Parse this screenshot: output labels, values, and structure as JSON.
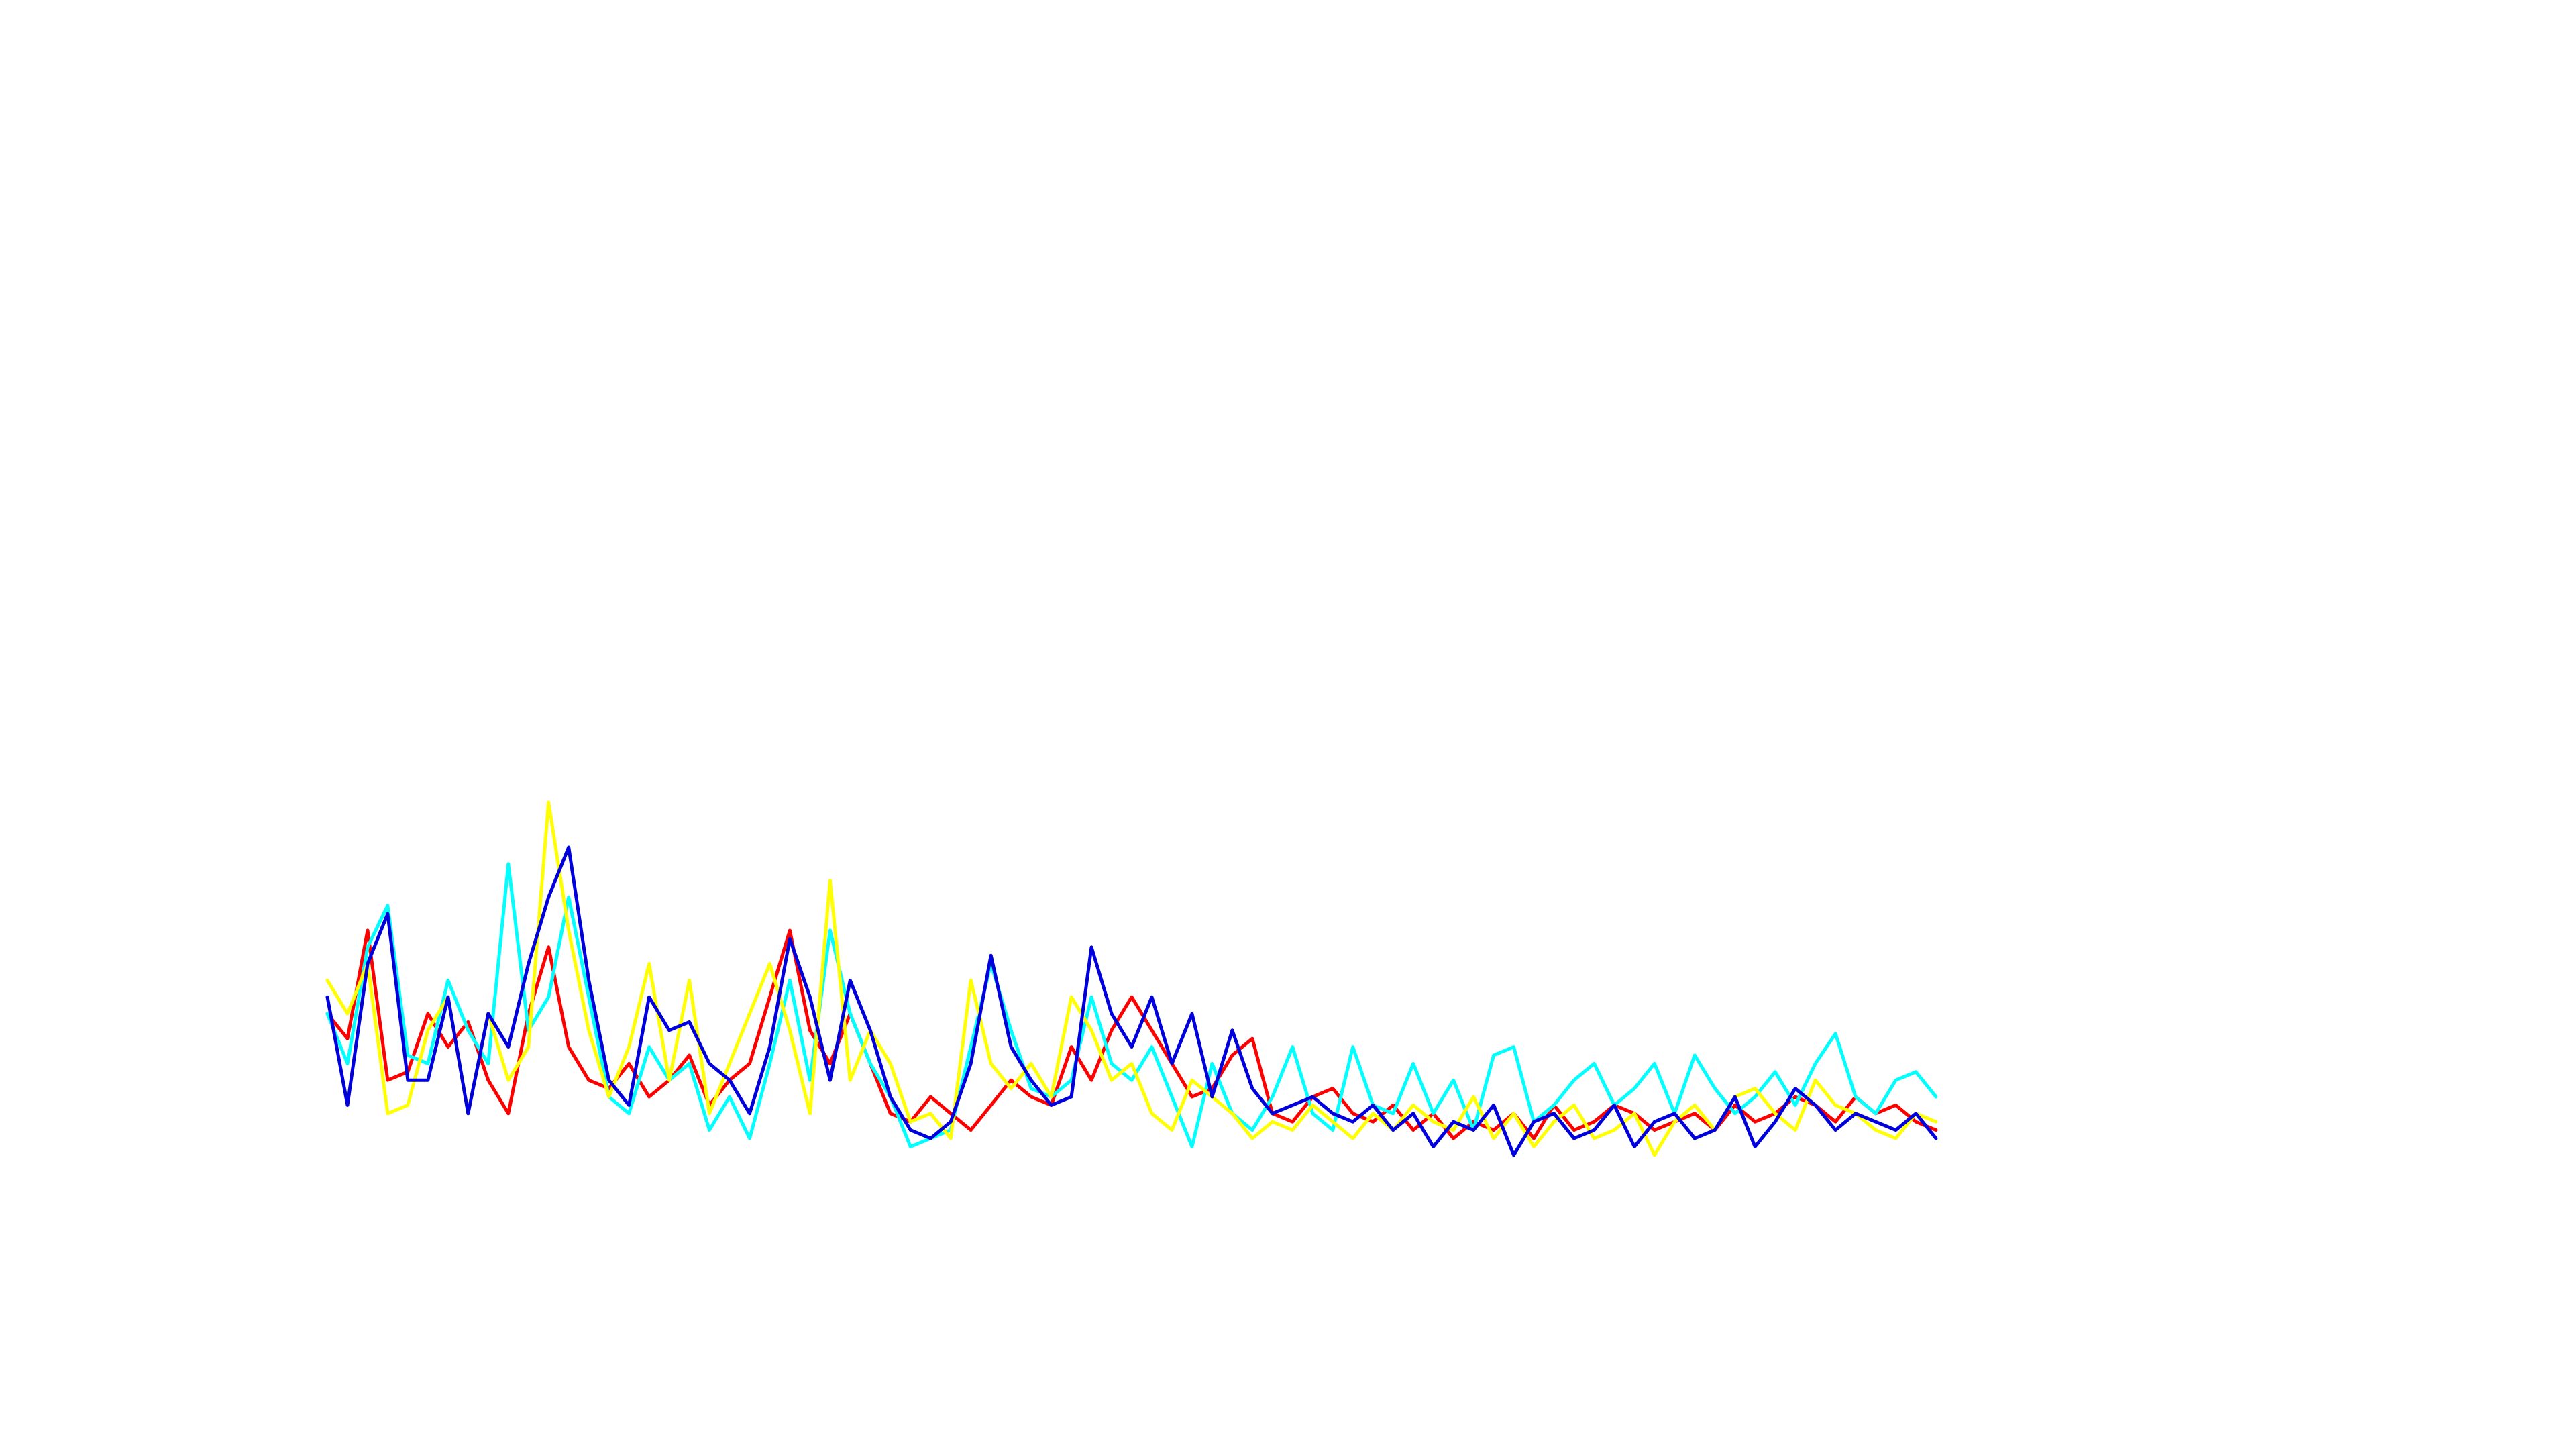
{
  "chart_data": {
    "type": "line",
    "xlim": [
      0,
      80
    ],
    "ylim": [
      0,
      250
    ],
    "grid": false,
    "series": [
      {
        "color": "#ff0000",
        "values": [
          100,
          85,
          150,
          60,
          65,
          100,
          80,
          95,
          60,
          40,
          100,
          140,
          80,
          60,
          55,
          70,
          50,
          60,
          75,
          45,
          60,
          70,
          110,
          150,
          90,
          70,
          100,
          70,
          40,
          35,
          50,
          40,
          30,
          45,
          60,
          50,
          45,
          80,
          60,
          90,
          110,
          90,
          70,
          50,
          55,
          75,
          85,
          40,
          35,
          50,
          55,
          40,
          35,
          45,
          30,
          40,
          25,
          35,
          30,
          40,
          25,
          45,
          30,
          35,
          45,
          40,
          30,
          35,
          40,
          30,
          45,
          35,
          40,
          50,
          45,
          35,
          50,
          40,
          45,
          35,
          30
        ]
      },
      {
        "color": "#00ffff",
        "values": [
          100,
          70,
          140,
          165,
          75,
          70,
          120,
          90,
          70,
          190,
          90,
          110,
          170,
          110,
          50,
          40,
          80,
          60,
          70,
          30,
          50,
          25,
          70,
          120,
          60,
          150,
          100,
          70,
          50,
          20,
          25,
          30,
          80,
          130,
          90,
          55,
          50,
          60,
          110,
          70,
          60,
          80,
          50,
          20,
          70,
          40,
          30,
          50,
          80,
          40,
          30,
          80,
          45,
          40,
          70,
          40,
          60,
          30,
          75,
          80,
          35,
          45,
          60,
          70,
          45,
          55,
          70,
          40,
          75,
          55,
          40,
          50,
          65,
          45,
          70,
          88,
          50,
          40,
          60,
          65,
          50
        ]
      },
      {
        "color": "#ffff00",
        "values": [
          120,
          100,
          130,
          40,
          45,
          90,
          110,
          40,
          100,
          60,
          80,
          227,
          150,
          90,
          50,
          80,
          130,
          60,
          120,
          40,
          70,
          100,
          130,
          90,
          40,
          180,
          60,
          90,
          70,
          35,
          40,
          25,
          120,
          70,
          55,
          70,
          50,
          110,
          90,
          60,
          70,
          40,
          30,
          60,
          50,
          40,
          25,
          35,
          30,
          45,
          35,
          25,
          40,
          30,
          45,
          35,
          30,
          50,
          25,
          40,
          20,
          35,
          45,
          25,
          30,
          40,
          15,
          35,
          45,
          30,
          50,
          55,
          40,
          30,
          60,
          45,
          40,
          30,
          25,
          40,
          35
        ]
      },
      {
        "color": "#0000dd",
        "values": [
          110,
          45,
          130,
          160,
          60,
          60,
          110,
          40,
          100,
          80,
          130,
          170,
          200,
          120,
          60,
          45,
          110,
          90,
          95,
          70,
          60,
          40,
          80,
          145,
          110,
          60,
          120,
          90,
          50,
          30,
          25,
          35,
          70,
          135,
          80,
          60,
          45,
          50,
          140,
          100,
          80,
          110,
          70,
          100,
          50,
          90,
          55,
          40,
          45,
          50,
          40,
          35,
          45,
          30,
          40,
          20,
          35,
          30,
          45,
          15,
          35,
          40,
          25,
          30,
          45,
          20,
          35,
          40,
          25,
          30,
          50,
          20,
          35,
          55,
          45,
          30,
          40,
          35,
          30,
          40,
          25
        ]
      }
    ]
  }
}
